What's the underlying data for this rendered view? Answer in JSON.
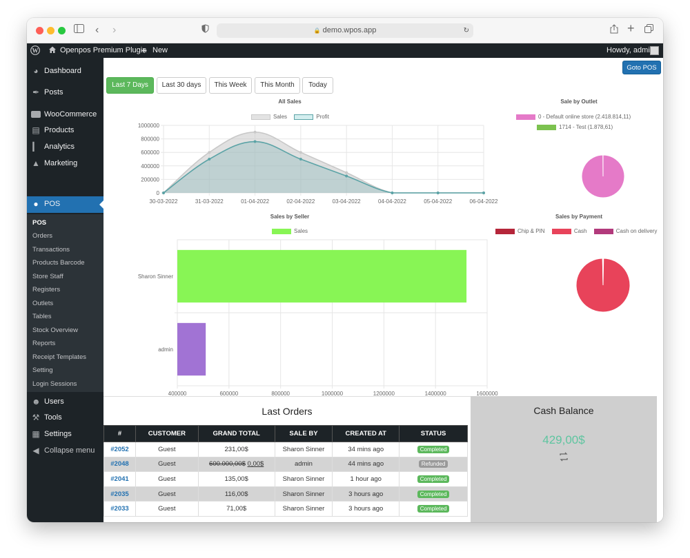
{
  "browser": {
    "url": "demo.wpos.app"
  },
  "adminbar": {
    "site_name": "Openpos Premium Plugin",
    "new_label": "New",
    "howdy": "Howdy, admin"
  },
  "sidebar": {
    "items": [
      {
        "label": "Dashboard",
        "icon": "dashboard-icon"
      },
      {
        "label": "Posts",
        "icon": "pin-icon"
      },
      {
        "label": "WooCommerce",
        "icon": "woocommerce-icon"
      },
      {
        "label": "Products",
        "icon": "products-icon"
      },
      {
        "label": "Analytics",
        "icon": "analytics-icon"
      },
      {
        "label": "Marketing",
        "icon": "megaphone-icon"
      },
      {
        "label": "POS",
        "icon": "pos-icon"
      },
      {
        "label": "Users",
        "icon": "users-icon"
      },
      {
        "label": "Tools",
        "icon": "wrench-icon"
      },
      {
        "label": "Settings",
        "icon": "settings-icon"
      },
      {
        "label": "Collapse menu",
        "icon": "collapse-icon"
      }
    ],
    "submenu": [
      "POS",
      "Orders",
      "Transactions",
      "Products Barcode",
      "Store Staff",
      "Registers",
      "Outlets",
      "Tables",
      "Stock Overview",
      "Reports",
      "Receipt Templates",
      "Setting",
      "Login Sessions"
    ]
  },
  "toolbar": {
    "goto_pos": "Goto POS",
    "ranges": [
      "Last 7 Days",
      "Last 30 days",
      "This Week",
      "This Month",
      "Today"
    ]
  },
  "chart_data": [
    {
      "type": "area",
      "title": "All Sales",
      "categories": [
        "30-03-2022",
        "31-03-2022",
        "01-04-2022",
        "02-04-2022",
        "03-04-2022",
        "04-04-2022",
        "05-04-2022",
        "06-04-2022"
      ],
      "series": [
        {
          "name": "Sales",
          "values": [
            0,
            600000,
            900000,
            600000,
            300000,
            0,
            0,
            0
          ],
          "color": "#d9d9d9"
        },
        {
          "name": "Profit",
          "values": [
            0,
            500000,
            760000,
            500000,
            250000,
            0,
            0,
            0
          ],
          "color": "#5ba3a6"
        }
      ],
      "yticks": [
        "0",
        "200000",
        "400000",
        "600000",
        "800000",
        "1000000"
      ],
      "ylim": [
        0,
        1000000
      ],
      "grid": true,
      "legend": "top"
    },
    {
      "type": "pie",
      "title": "Sale by Outlet",
      "labels": [
        "0 - Default online store (2.418.814,11)",
        "1714 - Test (1.878,61)"
      ],
      "values": [
        2418814.11,
        1878.61
      ],
      "colors": [
        "#e57ac8",
        "#7cc24f"
      ],
      "legend": "top"
    },
    {
      "type": "bar",
      "orientation": "horizontal",
      "title": "Sales by Seller",
      "categories": [
        "Sharon Sinner",
        "admin"
      ],
      "series": [
        {
          "name": "Sales",
          "values": [
            1520000,
            510000
          ],
          "color": "#88f555"
        }
      ],
      "bar_colors": [
        "#88f555",
        "#a173d4"
      ],
      "xticks": [
        "400000",
        "600000",
        "800000",
        "1000000",
        "1200000",
        "1400000",
        "1600000"
      ],
      "xlim": [
        400000,
        1600000
      ],
      "grid": true,
      "legend": "top"
    },
    {
      "type": "pie",
      "title": "Sales by Payment",
      "labels": [
        "Chip & PIN",
        "Cash",
        "Cash on delivery"
      ],
      "values": [
        0.3,
        99.4,
        0.3
      ],
      "colors": [
        "#b5263a",
        "#e8435a",
        "#b23a7c"
      ],
      "legend": "top"
    }
  ],
  "orders": {
    "title": "Last Orders",
    "columns": [
      "#",
      "CUSTOMER",
      "GRAND TOTAL",
      "SALE BY",
      "CREATED AT",
      "STATUS"
    ],
    "rows": [
      {
        "id": "#2052",
        "customer": "Guest",
        "total": "231,00$",
        "total_old": "",
        "sale_by": "Sharon Sinner",
        "created": "34 mins ago",
        "status": "Completed"
      },
      {
        "id": "#2048",
        "customer": "Guest",
        "total": "0,00$",
        "total_old": "600.000,00$",
        "sale_by": "admin",
        "created": "44 mins ago",
        "status": "Refunded"
      },
      {
        "id": "#2041",
        "customer": "Guest",
        "total": "135,00$",
        "total_old": "",
        "sale_by": "Sharon Sinner",
        "created": "1 hour ago",
        "status": "Completed"
      },
      {
        "id": "#2035",
        "customer": "Guest",
        "total": "116,00$",
        "total_old": "",
        "sale_by": "Sharon Sinner",
        "created": "3 hours ago",
        "status": "Completed"
      },
      {
        "id": "#2033",
        "customer": "Guest",
        "total": "71,00$",
        "total_old": "",
        "sale_by": "Sharon Sinner",
        "created": "3 hours ago",
        "status": "Completed"
      }
    ]
  },
  "cash_balance": {
    "title": "Cash Balance",
    "value": "429,00$",
    "icon": "refresh-icon"
  }
}
